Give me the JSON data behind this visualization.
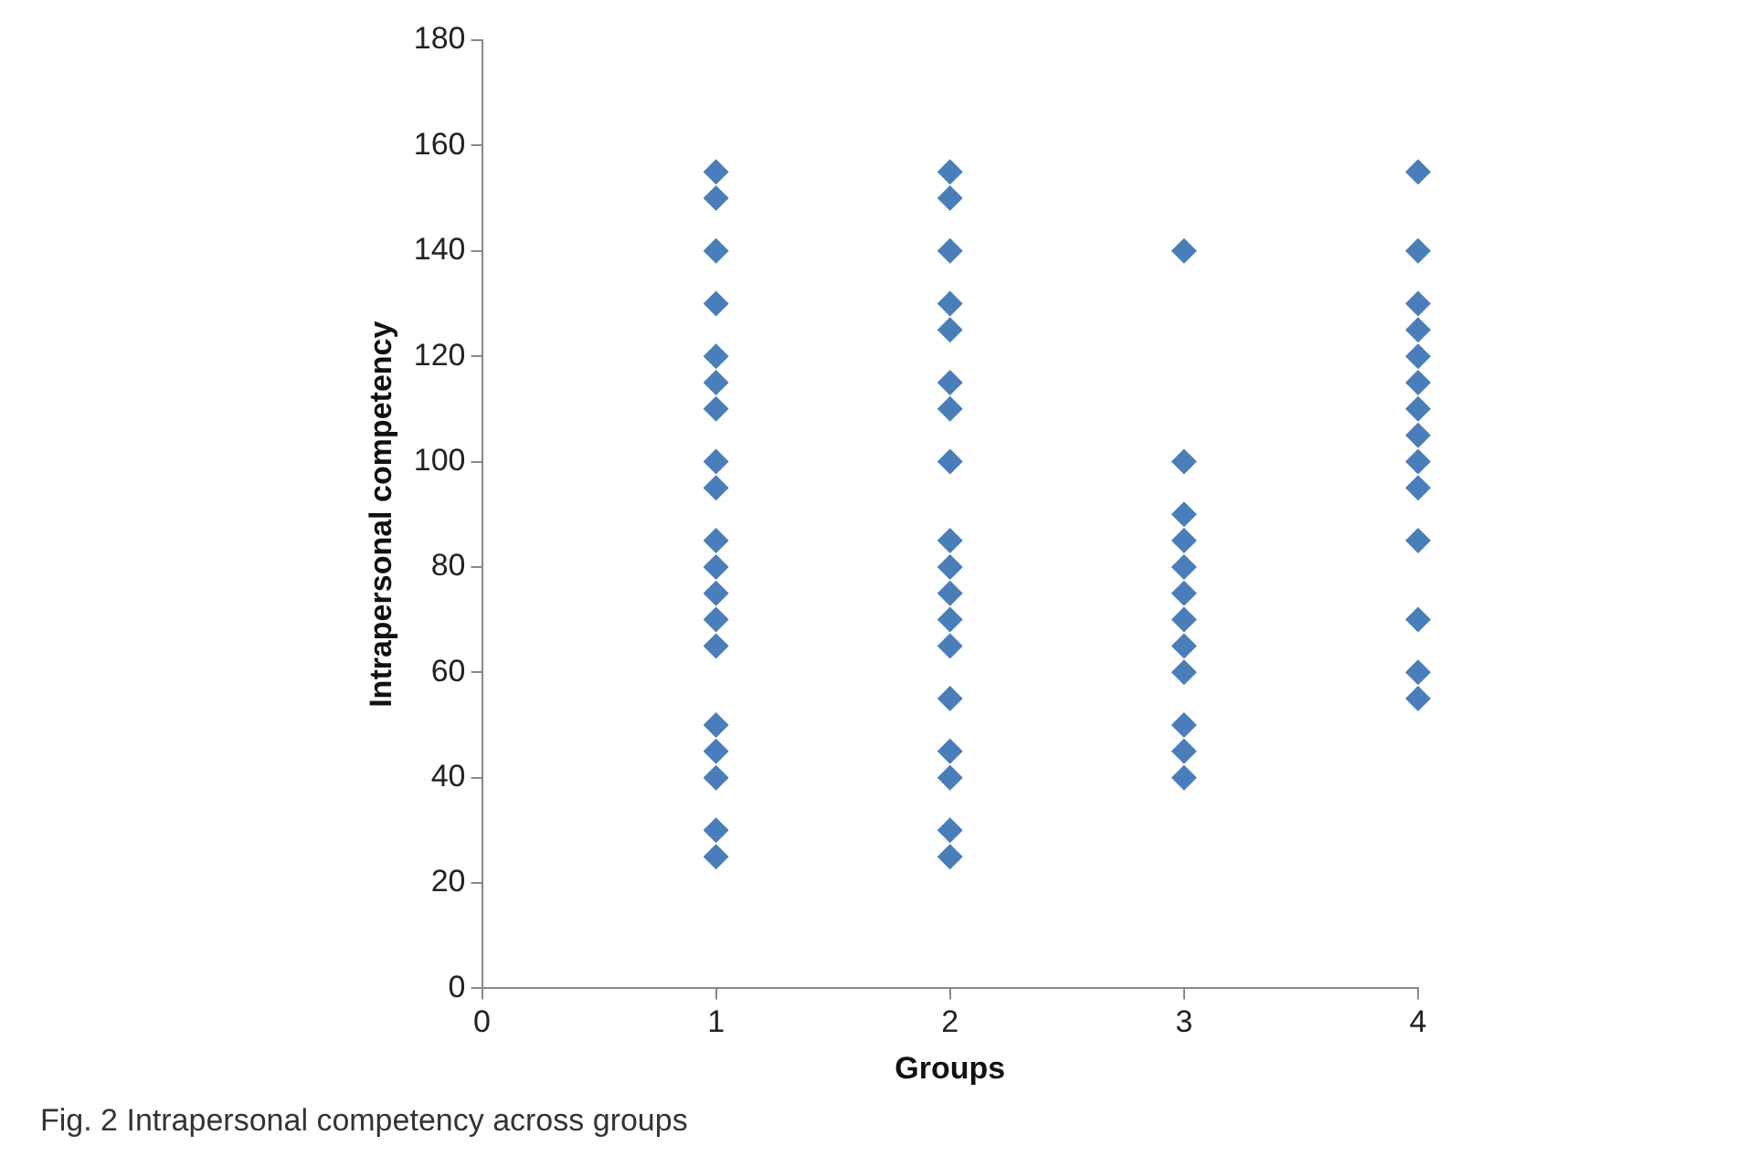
{
  "chart_data": {
    "type": "scatter",
    "xlabel": "Groups",
    "ylabel": "Intrapersonal competency",
    "xlim": [
      0,
      4
    ],
    "xticks": [
      0,
      1,
      2,
      3,
      4
    ],
    "ylim": [
      0,
      180
    ],
    "yticks": [
      0,
      20,
      40,
      60,
      80,
      100,
      120,
      140,
      160,
      180
    ],
    "grid": false,
    "legend": false,
    "marker": "diamond",
    "series": [
      {
        "color": "#4a7ebb",
        "x": [
          1,
          1,
          1,
          1,
          1,
          1,
          1,
          1,
          1,
          1,
          1,
          1,
          1,
          1,
          1,
          1,
          1,
          1,
          1,
          2,
          2,
          2,
          2,
          2,
          2,
          2,
          2,
          2,
          2,
          2,
          2,
          2,
          2,
          2,
          2,
          2,
          2,
          3,
          3,
          3,
          3,
          3,
          3,
          3,
          3,
          3,
          3,
          3,
          3,
          4,
          4,
          4,
          4,
          4,
          4,
          4,
          4,
          4,
          4,
          4,
          4,
          4,
          4
        ],
        "values": [
          155,
          150,
          140,
          130,
          120,
          115,
          110,
          100,
          95,
          85,
          80,
          75,
          70,
          65,
          50,
          45,
          40,
          30,
          25,
          155,
          150,
          140,
          130,
          125,
          115,
          110,
          100,
          85,
          80,
          75,
          70,
          65,
          55,
          45,
          40,
          30,
          25,
          140,
          100,
          90,
          85,
          80,
          75,
          70,
          65,
          60,
          50,
          45,
          40,
          155,
          140,
          130,
          125,
          120,
          115,
          110,
          105,
          100,
          95,
          85,
          70,
          60,
          55
        ]
      }
    ],
    "annotations": [
      "Fig. 2 Intrapersonal competency across groups"
    ]
  }
}
